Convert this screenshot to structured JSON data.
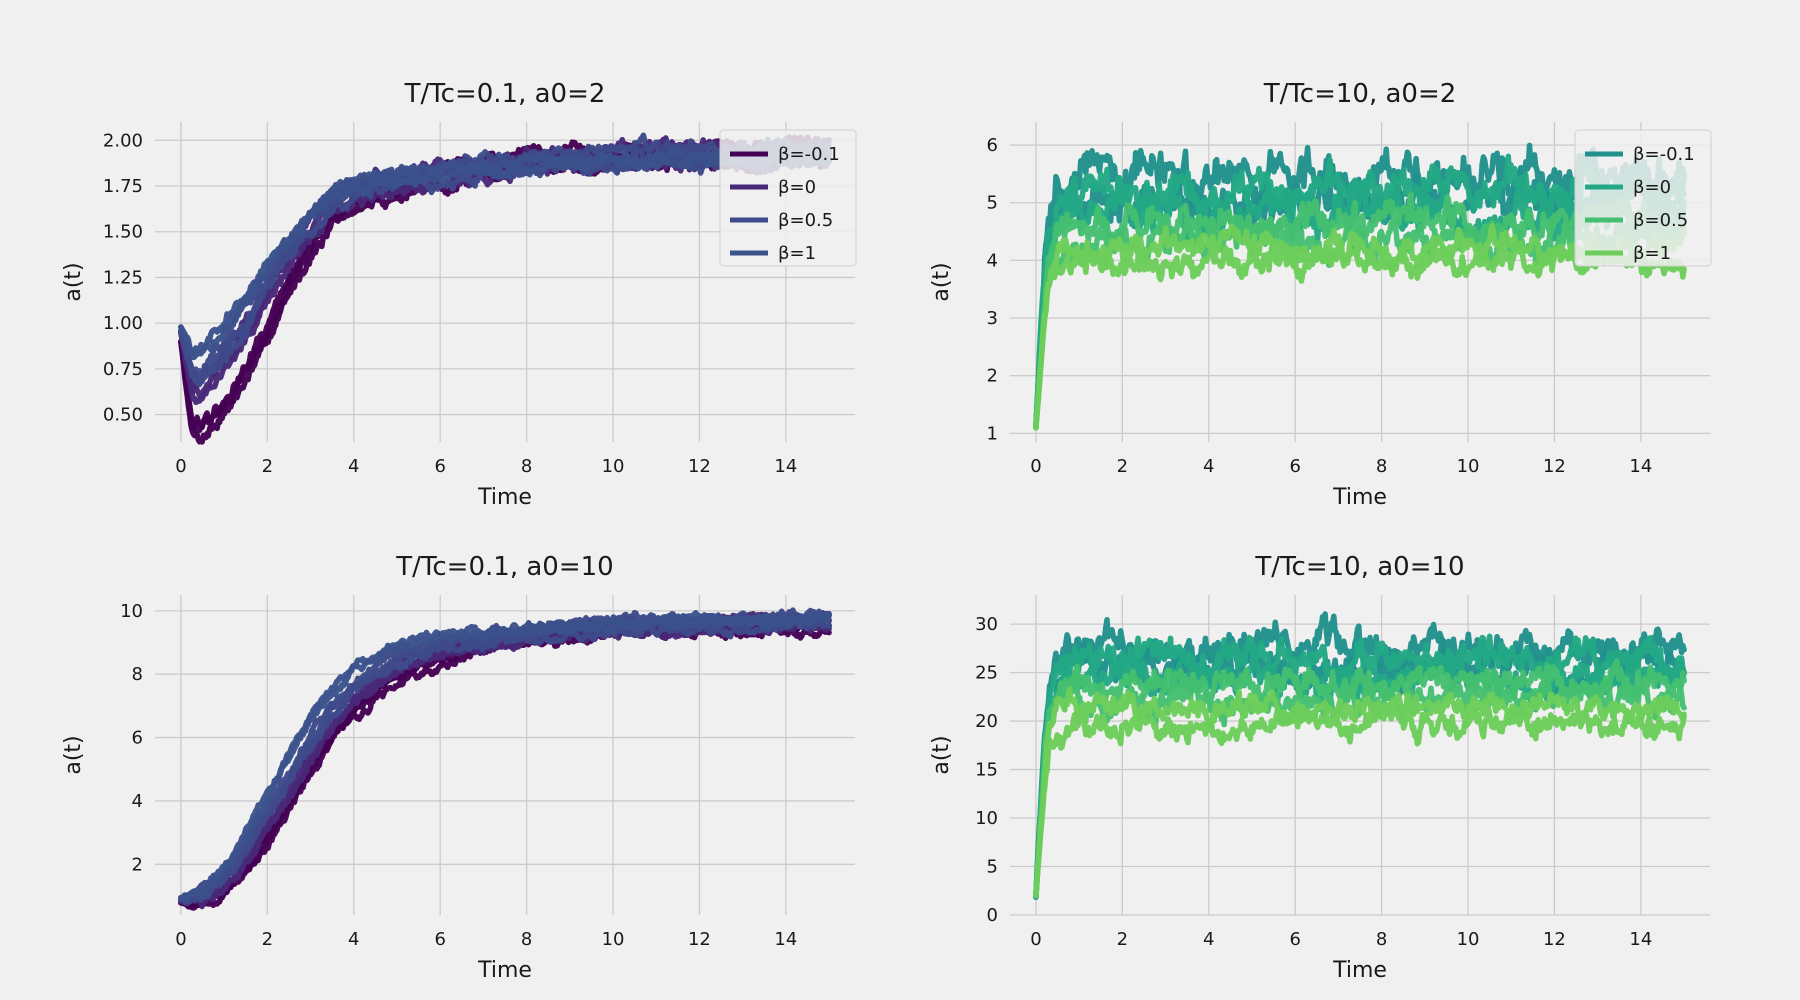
{
  "chart_data": [
    {
      "type": "line",
      "title": "T/Tc=0.1, a0=2",
      "xlabel": "Time",
      "ylabel": "a(t)",
      "xlim": [
        -0.6,
        15.6
      ],
      "ylim": [
        0.35,
        2.1
      ],
      "xticks": [
        "0",
        "2",
        "4",
        "6",
        "8",
        "10",
        "12",
        "14"
      ],
      "yticks": [
        "0.50",
        "0.75",
        "1.00",
        "1.25",
        "1.50",
        "1.75",
        "2.00"
      ],
      "grid": true,
      "legend": {
        "placement": "top-right",
        "entries": [
          "β=-0.1",
          "β=0",
          "β=0.5",
          "β=1"
        ]
      },
      "x": [
        0,
        0.25,
        0.5,
        1,
        1.5,
        2,
        2.5,
        3,
        3.5,
        4,
        5,
        6,
        7,
        8,
        9,
        10,
        11,
        12,
        13,
        14,
        15
      ],
      "series": [
        {
          "name": "β=-0.1",
          "color": "#440154",
          "noise": 0.03,
          "runs": 3,
          "values": [
            0.9,
            0.42,
            0.42,
            0.55,
            0.72,
            0.95,
            1.2,
            1.42,
            1.57,
            1.66,
            1.74,
            1.79,
            1.83,
            1.88,
            1.9,
            1.91,
            1.91,
            1.92,
            1.92,
            1.93,
            1.93
          ]
        },
        {
          "name": "β=0",
          "color": "#482878",
          "noise": 0.03,
          "runs": 3,
          "values": [
            0.95,
            0.62,
            0.64,
            0.78,
            0.95,
            1.15,
            1.36,
            1.53,
            1.64,
            1.71,
            1.77,
            1.81,
            1.84,
            1.88,
            1.9,
            1.91,
            1.91,
            1.92,
            1.92,
            1.92,
            1.93
          ]
        },
        {
          "name": "β=0.5",
          "color": "#3e4a89",
          "noise": 0.03,
          "runs": 3,
          "values": [
            0.96,
            0.71,
            0.72,
            0.86,
            1.02,
            1.21,
            1.41,
            1.56,
            1.67,
            1.73,
            1.78,
            1.81,
            1.84,
            1.87,
            1.89,
            1.9,
            1.91,
            1.91,
            1.92,
            1.92,
            1.92
          ]
        },
        {
          "name": "β=1",
          "color": "#3b528b",
          "noise": 0.025,
          "runs": 2,
          "values": [
            0.98,
            0.84,
            0.86,
            0.98,
            1.13,
            1.3,
            1.47,
            1.6,
            1.7,
            1.75,
            1.79,
            1.82,
            1.84,
            1.87,
            1.88,
            1.89,
            1.9,
            1.9,
            1.91,
            1.91,
            1.91
          ]
        }
      ]
    },
    {
      "type": "line",
      "title": "T/Tc=10, a0=2",
      "xlabel": "Time",
      "ylabel": "a(t)",
      "xlim": [
        -0.6,
        15.6
      ],
      "ylim": [
        0.85,
        6.4
      ],
      "xticks": [
        "0",
        "2",
        "4",
        "6",
        "8",
        "10",
        "12",
        "14"
      ],
      "yticks": [
        "1",
        "2",
        "3",
        "4",
        "5",
        "6"
      ],
      "grid": true,
      "legend": {
        "placement": "top-right",
        "entries": [
          "β=-0.1",
          "β=0",
          "β=0.5",
          "β=1"
        ]
      },
      "x": [
        0,
        0.1,
        0.2,
        0.3,
        0.5,
        0.8,
        1.2,
        2,
        4,
        6,
        8,
        10,
        12,
        14,
        15
      ],
      "series": [
        {
          "name": "β=-0.1",
          "color": "#21918c",
          "noise": 0.32,
          "runs": 2,
          "values": [
            1.1,
            2.6,
            3.8,
            4.5,
            5.0,
            5.2,
            5.25,
            5.25,
            5.25,
            5.25,
            5.25,
            5.25,
            5.25,
            5.25,
            5.25
          ]
        },
        {
          "name": "β=0",
          "color": "#22a884",
          "noise": 0.3,
          "runs": 2,
          "values": [
            1.1,
            2.4,
            3.6,
            4.3,
            4.8,
            4.95,
            5.0,
            5.0,
            5.0,
            5.0,
            5.0,
            5.0,
            5.0,
            5.0,
            5.0
          ]
        },
        {
          "name": "β=0.5",
          "color": "#44bf70",
          "noise": 0.25,
          "runs": 2,
          "values": [
            1.1,
            2.2,
            3.3,
            3.9,
            4.3,
            4.45,
            4.5,
            4.5,
            4.5,
            4.5,
            4.5,
            4.5,
            4.5,
            4.5,
            4.5
          ]
        },
        {
          "name": "β=1",
          "color": "#6ccd5a",
          "noise": 0.2,
          "runs": 2,
          "values": [
            1.1,
            2.0,
            3.0,
            3.6,
            3.95,
            4.05,
            4.1,
            4.1,
            4.1,
            4.1,
            4.1,
            4.1,
            4.1,
            4.1,
            4.1
          ]
        }
      ]
    },
    {
      "type": "line",
      "title": "T/Tc=0.1, a0=10",
      "xlabel": "Time",
      "ylabel": "a(t)",
      "xlim": [
        -0.6,
        15.6
      ],
      "ylim": [
        0.4,
        10.5
      ],
      "xticks": [
        "0",
        "2",
        "4",
        "6",
        "8",
        "10",
        "12",
        "14"
      ],
      "yticks": [
        "2",
        "4",
        "6",
        "8",
        "10"
      ],
      "grid": true,
      "legend": null,
      "x": [
        0,
        0.5,
        1,
        1.5,
        2,
        2.5,
        3,
        3.5,
        4,
        5,
        6,
        7,
        8,
        9,
        10,
        11,
        12,
        13,
        14,
        15
      ],
      "series": [
        {
          "name": "β=-0.1",
          "color": "#440154",
          "noise": 0.12,
          "runs": 3,
          "values": [
            0.8,
            0.85,
            1.2,
            1.9,
            2.8,
            3.9,
            5.0,
            6.0,
            6.8,
            7.9,
            8.5,
            8.9,
            9.1,
            9.3,
            9.4,
            9.5,
            9.5,
            9.5,
            9.5,
            9.5
          ]
        },
        {
          "name": "β=0",
          "color": "#482878",
          "noise": 0.12,
          "runs": 3,
          "values": [
            0.85,
            0.95,
            1.4,
            2.2,
            3.2,
            4.3,
            5.4,
            6.4,
            7.2,
            8.2,
            8.7,
            9.0,
            9.2,
            9.3,
            9.4,
            9.5,
            9.5,
            9.6,
            9.6,
            9.6
          ]
        },
        {
          "name": "β=0.5",
          "color": "#3e4a89",
          "noise": 0.12,
          "runs": 3,
          "values": [
            0.9,
            1.05,
            1.6,
            2.5,
            3.6,
            4.8,
            5.9,
            6.9,
            7.6,
            8.5,
            8.9,
            9.1,
            9.3,
            9.4,
            9.5,
            9.6,
            9.6,
            9.6,
            9.7,
            9.7
          ]
        },
        {
          "name": "β=1",
          "color": "#3b528b",
          "noise": 0.1,
          "runs": 2,
          "values": [
            0.95,
            1.2,
            1.9,
            2.9,
            4.1,
            5.4,
            6.6,
            7.5,
            8.2,
            8.9,
            9.2,
            9.3,
            9.4,
            9.5,
            9.6,
            9.6,
            9.7,
            9.7,
            9.7,
            9.8
          ]
        }
      ]
    },
    {
      "type": "line",
      "title": "T/Tc=10, a0=10",
      "xlabel": "Time",
      "ylabel": "a(t)",
      "xlim": [
        -0.6,
        15.6
      ],
      "ylim": [
        0,
        33
      ],
      "xticks": [
        "0",
        "2",
        "4",
        "6",
        "8",
        "10",
        "12",
        "14"
      ],
      "yticks": [
        "0",
        "5",
        "10",
        "15",
        "20",
        "25",
        "30"
      ],
      "grid": true,
      "legend": null,
      "x": [
        0,
        0.1,
        0.2,
        0.3,
        0.5,
        0.8,
        1.2,
        2,
        4,
        6,
        8,
        10,
        12,
        14,
        15
      ],
      "series": [
        {
          "name": "β=-0.1",
          "color": "#21918c",
          "noise": 1.6,
          "runs": 2,
          "values": [
            2,
            11,
            19,
            23,
            25.5,
            26.5,
            26.5,
            26.5,
            26.5,
            26.5,
            26.5,
            26.5,
            26.5,
            26.5,
            26.5
          ]
        },
        {
          "name": "β=0",
          "color": "#22a884",
          "noise": 1.5,
          "runs": 2,
          "values": [
            2,
            10,
            18,
            22,
            24.5,
            25.5,
            25.5,
            25.5,
            25.5,
            25.5,
            25.5,
            25.5,
            25.5,
            25.5,
            25.5
          ]
        },
        {
          "name": "β=0.5",
          "color": "#44bf70",
          "noise": 1.3,
          "runs": 2,
          "values": [
            2,
            9,
            16,
            20,
            22,
            23,
            23,
            23,
            23,
            23,
            23,
            23,
            23,
            23,
            23
          ]
        },
        {
          "name": "β=1",
          "color": "#6ccd5a",
          "noise": 1.1,
          "runs": 2,
          "values": [
            2,
            8,
            14,
            18,
            19.5,
            20.5,
            20.5,
            20.5,
            20.5,
            20.5,
            20.5,
            20.5,
            20.5,
            20.5,
            20.5
          ]
        }
      ]
    }
  ]
}
